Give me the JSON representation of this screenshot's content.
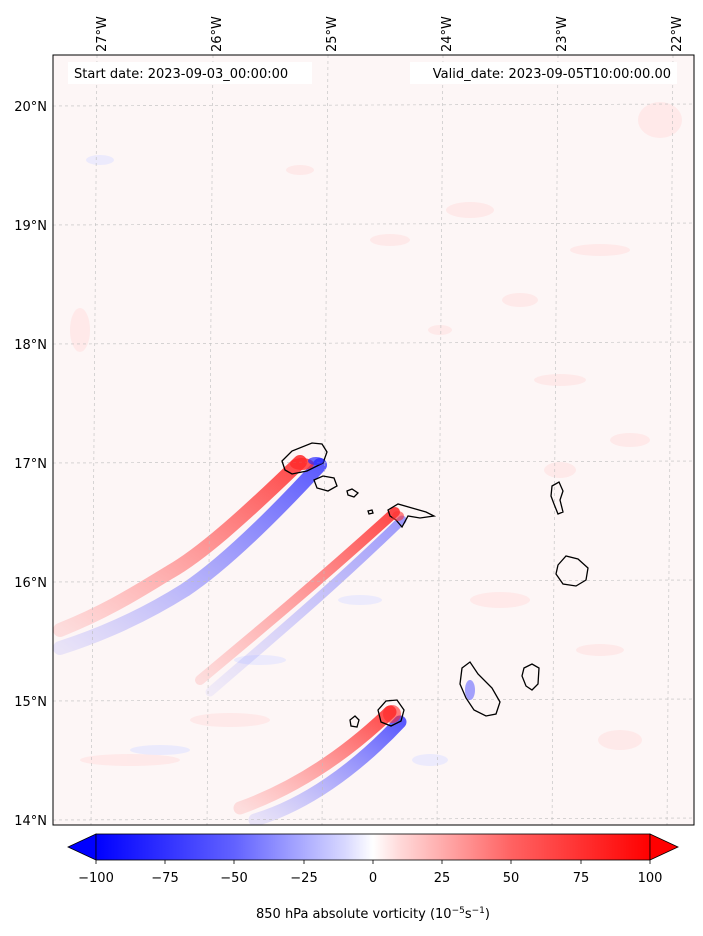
{
  "map": {
    "start_label": "Start date: 2023-09-03_00:00:00",
    "valid_label": "Valid_date: 2023-09-05T10:00:00.00",
    "lon_ticks": [
      "27°W",
      "26°W",
      "25°W",
      "24°W",
      "23°W",
      "22°W"
    ],
    "lat_ticks": [
      "20°N",
      "19°N",
      "18°N",
      "17°N",
      "16°N",
      "15°N",
      "14°N"
    ],
    "lon_range": [
      -27.35,
      -21.8
    ],
    "lat_range": [
      13.95,
      20.42
    ],
    "background_color": "#fdf6f6"
  },
  "colorbar": {
    "ticks": [
      "−100",
      "−75",
      "−50",
      "−25",
      "0",
      "25",
      "50",
      "75",
      "100"
    ],
    "label_text": "850 hPa absolute vorticity (10",
    "label_exp1": "−5",
    "label_mid": "s",
    "label_exp2": "−1",
    "label_end": ")",
    "min": -100,
    "max": 100,
    "low_color": "#0000ff",
    "high_color": "#ff0000"
  }
}
